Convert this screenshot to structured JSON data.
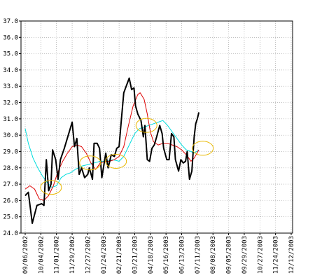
{
  "chart_data": {
    "type": "line",
    "title": "",
    "xlabel": "",
    "ylabel": "",
    "ylim": [
      24.0,
      37.0
    ],
    "y_ticks": [
      "24.0",
      "25.0",
      "26.0",
      "27.0",
      "28.0",
      "29.0",
      "30.0",
      "31.0",
      "32.0",
      "33.0",
      "34.0",
      "35.0",
      "36.0",
      "37.0"
    ],
    "x_ticks": [
      "09/06/2002",
      "10/04/2002",
      "11/01/2002",
      "11/29/2002",
      "12/27/2002",
      "01/24/2003",
      "02/21/2003",
      "03/21/2003",
      "04/18/2003",
      "05/16/2003",
      "06/13/2003",
      "07/11/2003",
      "08/08/2003",
      "09/05/2003",
      "09/29/2003",
      "10/27/2003",
      "11/24/2003",
      "12/12/2003"
    ],
    "grid": true,
    "colors": {
      "price": "#000000",
      "short_ma": "#dd0000",
      "long_ma": "#00dddd",
      "highlight": "#e8b800"
    },
    "series": [
      {
        "key": "price",
        "points": [
          [
            0,
            26.3
          ],
          [
            0.2,
            26.5
          ],
          [
            0.45,
            24.6
          ],
          [
            0.75,
            25.7
          ],
          [
            1.05,
            25.8
          ],
          [
            1.2,
            25.7
          ],
          [
            1.35,
            28.5
          ],
          [
            1.5,
            26.6
          ],
          [
            1.65,
            27.0
          ],
          [
            1.75,
            29.1
          ],
          [
            1.95,
            28.5
          ],
          [
            2.1,
            27.3
          ],
          [
            2.25,
            28.5
          ],
          [
            2.5,
            29.2
          ],
          [
            2.75,
            30.0
          ],
          [
            3.0,
            30.8
          ],
          [
            3.15,
            29.3
          ],
          [
            3.3,
            29.8
          ],
          [
            3.45,
            27.6
          ],
          [
            3.6,
            28.0
          ],
          [
            3.8,
            27.4
          ],
          [
            4.0,
            27.6
          ],
          [
            4.1,
            28.0
          ],
          [
            4.3,
            27.3
          ],
          [
            4.4,
            29.5
          ],
          [
            4.6,
            29.5
          ],
          [
            4.75,
            29.2
          ],
          [
            4.9,
            27.4
          ],
          [
            5.15,
            28.9
          ],
          [
            5.3,
            28.0
          ],
          [
            5.5,
            28.8
          ],
          [
            5.7,
            28.7
          ],
          [
            5.85,
            29.2
          ],
          [
            6.0,
            29.3
          ],
          [
            6.15,
            31.0
          ],
          [
            6.3,
            32.6
          ],
          [
            6.65,
            33.5
          ],
          [
            6.8,
            32.8
          ],
          [
            6.95,
            32.9
          ],
          [
            7.05,
            31.8
          ],
          [
            7.2,
            31.3
          ],
          [
            7.4,
            30.9
          ],
          [
            7.55,
            29.9
          ],
          [
            7.65,
            30.6
          ],
          [
            7.8,
            28.5
          ],
          [
            7.95,
            28.4
          ],
          [
            8.1,
            29.2
          ],
          [
            8.25,
            29.4
          ],
          [
            8.4,
            29.9
          ],
          [
            8.6,
            30.6
          ],
          [
            8.75,
            30.1
          ],
          [
            8.85,
            29.2
          ],
          [
            9.05,
            28.5
          ],
          [
            9.2,
            28.5
          ],
          [
            9.35,
            30.1
          ],
          [
            9.5,
            29.9
          ],
          [
            9.6,
            28.5
          ],
          [
            9.8,
            27.8
          ],
          [
            9.95,
            28.5
          ],
          [
            10.1,
            28.3
          ],
          [
            10.25,
            28.4
          ],
          [
            10.35,
            29.0
          ],
          [
            10.5,
            27.3
          ],
          [
            10.65,
            27.8
          ],
          [
            10.8,
            29.9
          ],
          [
            10.9,
            30.7
          ],
          [
            11.0,
            31.0
          ],
          [
            11.1,
            31.4
          ]
        ]
      },
      {
        "key": "short_ma",
        "points": [
          [
            0,
            26.7
          ],
          [
            0.3,
            26.9
          ],
          [
            0.6,
            26.7
          ],
          [
            0.9,
            26.1
          ],
          [
            1.2,
            26.0
          ],
          [
            1.5,
            26.3
          ],
          [
            1.8,
            26.9
          ],
          [
            2.0,
            27.5
          ],
          [
            2.2,
            28.0
          ],
          [
            2.4,
            28.4
          ],
          [
            2.7,
            28.9
          ],
          [
            3.0,
            29.3
          ],
          [
            3.3,
            29.4
          ],
          [
            3.6,
            29.3
          ],
          [
            3.9,
            28.9
          ],
          [
            4.2,
            28.3
          ],
          [
            4.5,
            27.9
          ],
          [
            4.8,
            28.3
          ],
          [
            5.1,
            28.4
          ],
          [
            5.4,
            28.4
          ],
          [
            5.7,
            28.5
          ],
          [
            6.0,
            28.7
          ],
          [
            6.3,
            29.3
          ],
          [
            6.6,
            30.6
          ],
          [
            6.9,
            31.8
          ],
          [
            7.2,
            32.5
          ],
          [
            7.35,
            32.6
          ],
          [
            7.6,
            32.2
          ],
          [
            7.8,
            31.3
          ],
          [
            8.0,
            30.2
          ],
          [
            8.2,
            29.6
          ],
          [
            8.5,
            29.4
          ],
          [
            8.8,
            29.5
          ],
          [
            9.1,
            29.5
          ],
          [
            9.4,
            29.4
          ],
          [
            9.7,
            29.3
          ],
          [
            10.0,
            29.1
          ],
          [
            10.3,
            28.8
          ],
          [
            10.6,
            28.4
          ],
          [
            10.8,
            28.6
          ],
          [
            11.1,
            29.1
          ]
        ]
      },
      {
        "key": "long_ma",
        "points": [
          [
            0,
            30.4
          ],
          [
            0.2,
            29.5
          ],
          [
            0.5,
            28.6
          ],
          [
            0.8,
            28.0
          ],
          [
            1.1,
            27.5
          ],
          [
            1.4,
            27.1
          ],
          [
            1.7,
            26.8
          ],
          [
            2.0,
            26.9
          ],
          [
            2.3,
            27.4
          ],
          [
            2.6,
            27.6
          ],
          [
            2.9,
            27.7
          ],
          [
            3.2,
            27.9
          ],
          [
            3.6,
            28.1
          ],
          [
            4.0,
            28.2
          ],
          [
            4.4,
            28.3
          ],
          [
            4.8,
            28.4
          ],
          [
            5.2,
            28.4
          ],
          [
            5.6,
            28.5
          ],
          [
            6.0,
            28.4
          ],
          [
            6.3,
            28.7
          ],
          [
            6.6,
            29.3
          ],
          [
            7.0,
            30.1
          ],
          [
            7.3,
            30.4
          ],
          [
            7.6,
            30.5
          ],
          [
            7.9,
            30.6
          ],
          [
            8.2,
            30.7
          ],
          [
            8.5,
            30.8
          ],
          [
            8.8,
            30.9
          ],
          [
            9.1,
            30.6
          ],
          [
            9.4,
            30.2
          ],
          [
            9.7,
            29.8
          ],
          [
            10.0,
            29.4
          ],
          [
            10.3,
            29.1
          ],
          [
            10.6,
            29.0
          ],
          [
            10.8,
            28.9
          ],
          [
            11.1,
            29.1
          ]
        ]
      }
    ],
    "highlights": [
      {
        "x": 1.65,
        "y": 26.8
      },
      {
        "x": 4.15,
        "y": 28.3
      },
      {
        "x": 5.8,
        "y": 28.4
      },
      {
        "x": 7.75,
        "y": 30.6
      },
      {
        "x": 11.35,
        "y": 29.2
      }
    ]
  }
}
